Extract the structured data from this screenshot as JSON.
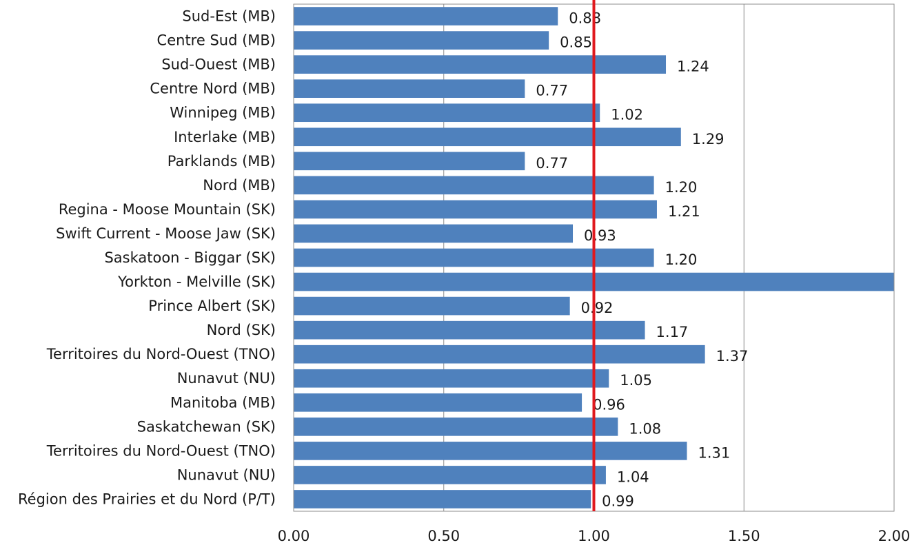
{
  "chart_data": {
    "type": "bar",
    "orientation": "horizontal",
    "categories": [
      "Sud-Est (MB)",
      "Centre Sud (MB)",
      "Sud-Ouest (MB)",
      "Centre Nord (MB)",
      "Winnipeg (MB)",
      "Interlake (MB)",
      "Parklands (MB)",
      "Nord (MB)",
      "Regina - Moose Mountain (SK)",
      "Swift Current - Moose Jaw (SK)",
      "Saskatoon - Biggar (SK)",
      "Yorkton - Melville (SK)",
      "Prince Albert (SK)",
      "Nord (SK)",
      "Territoires du Nord-Ouest (TNO)",
      "Nunavut (NU)",
      "Manitoba (MB)",
      "Saskatchewan (SK)",
      "Territoires du Nord-Ouest (TNO)",
      "Nunavut (NU)",
      "Région des Prairies et du Nord (P/T)"
    ],
    "values": [
      0.88,
      0.85,
      1.24,
      0.77,
      1.02,
      1.29,
      0.77,
      1.2,
      1.21,
      0.93,
      1.2,
      2.0,
      0.92,
      1.17,
      1.37,
      1.05,
      0.96,
      1.08,
      1.31,
      1.04,
      0.99
    ],
    "value_labels": [
      "0.88",
      "0.85",
      "1.24",
      "0.77",
      "1.02",
      "1.29",
      "0.77",
      "1.20",
      "1.21",
      "0.93",
      "1.20",
      "",
      "0.92",
      "1.17",
      "1.37",
      "1.05",
      "0.96",
      "1.08",
      "1.31",
      "1.04",
      "0.99"
    ],
    "xlim": [
      0,
      2
    ],
    "xticks": [
      "0.00",
      "0.50",
      "1.00",
      "1.50",
      "2.00"
    ],
    "xtick_values": [
      0,
      0.5,
      1,
      1.5,
      2
    ],
    "reference_line": 1.0,
    "grid": "vertical",
    "title": "",
    "xlabel": "",
    "ylabel": "",
    "colors": {
      "bar": "#4F81BD",
      "reference_line": "#E0191E",
      "grid": "#8C8C8C",
      "border": "#8C8C8C"
    }
  }
}
